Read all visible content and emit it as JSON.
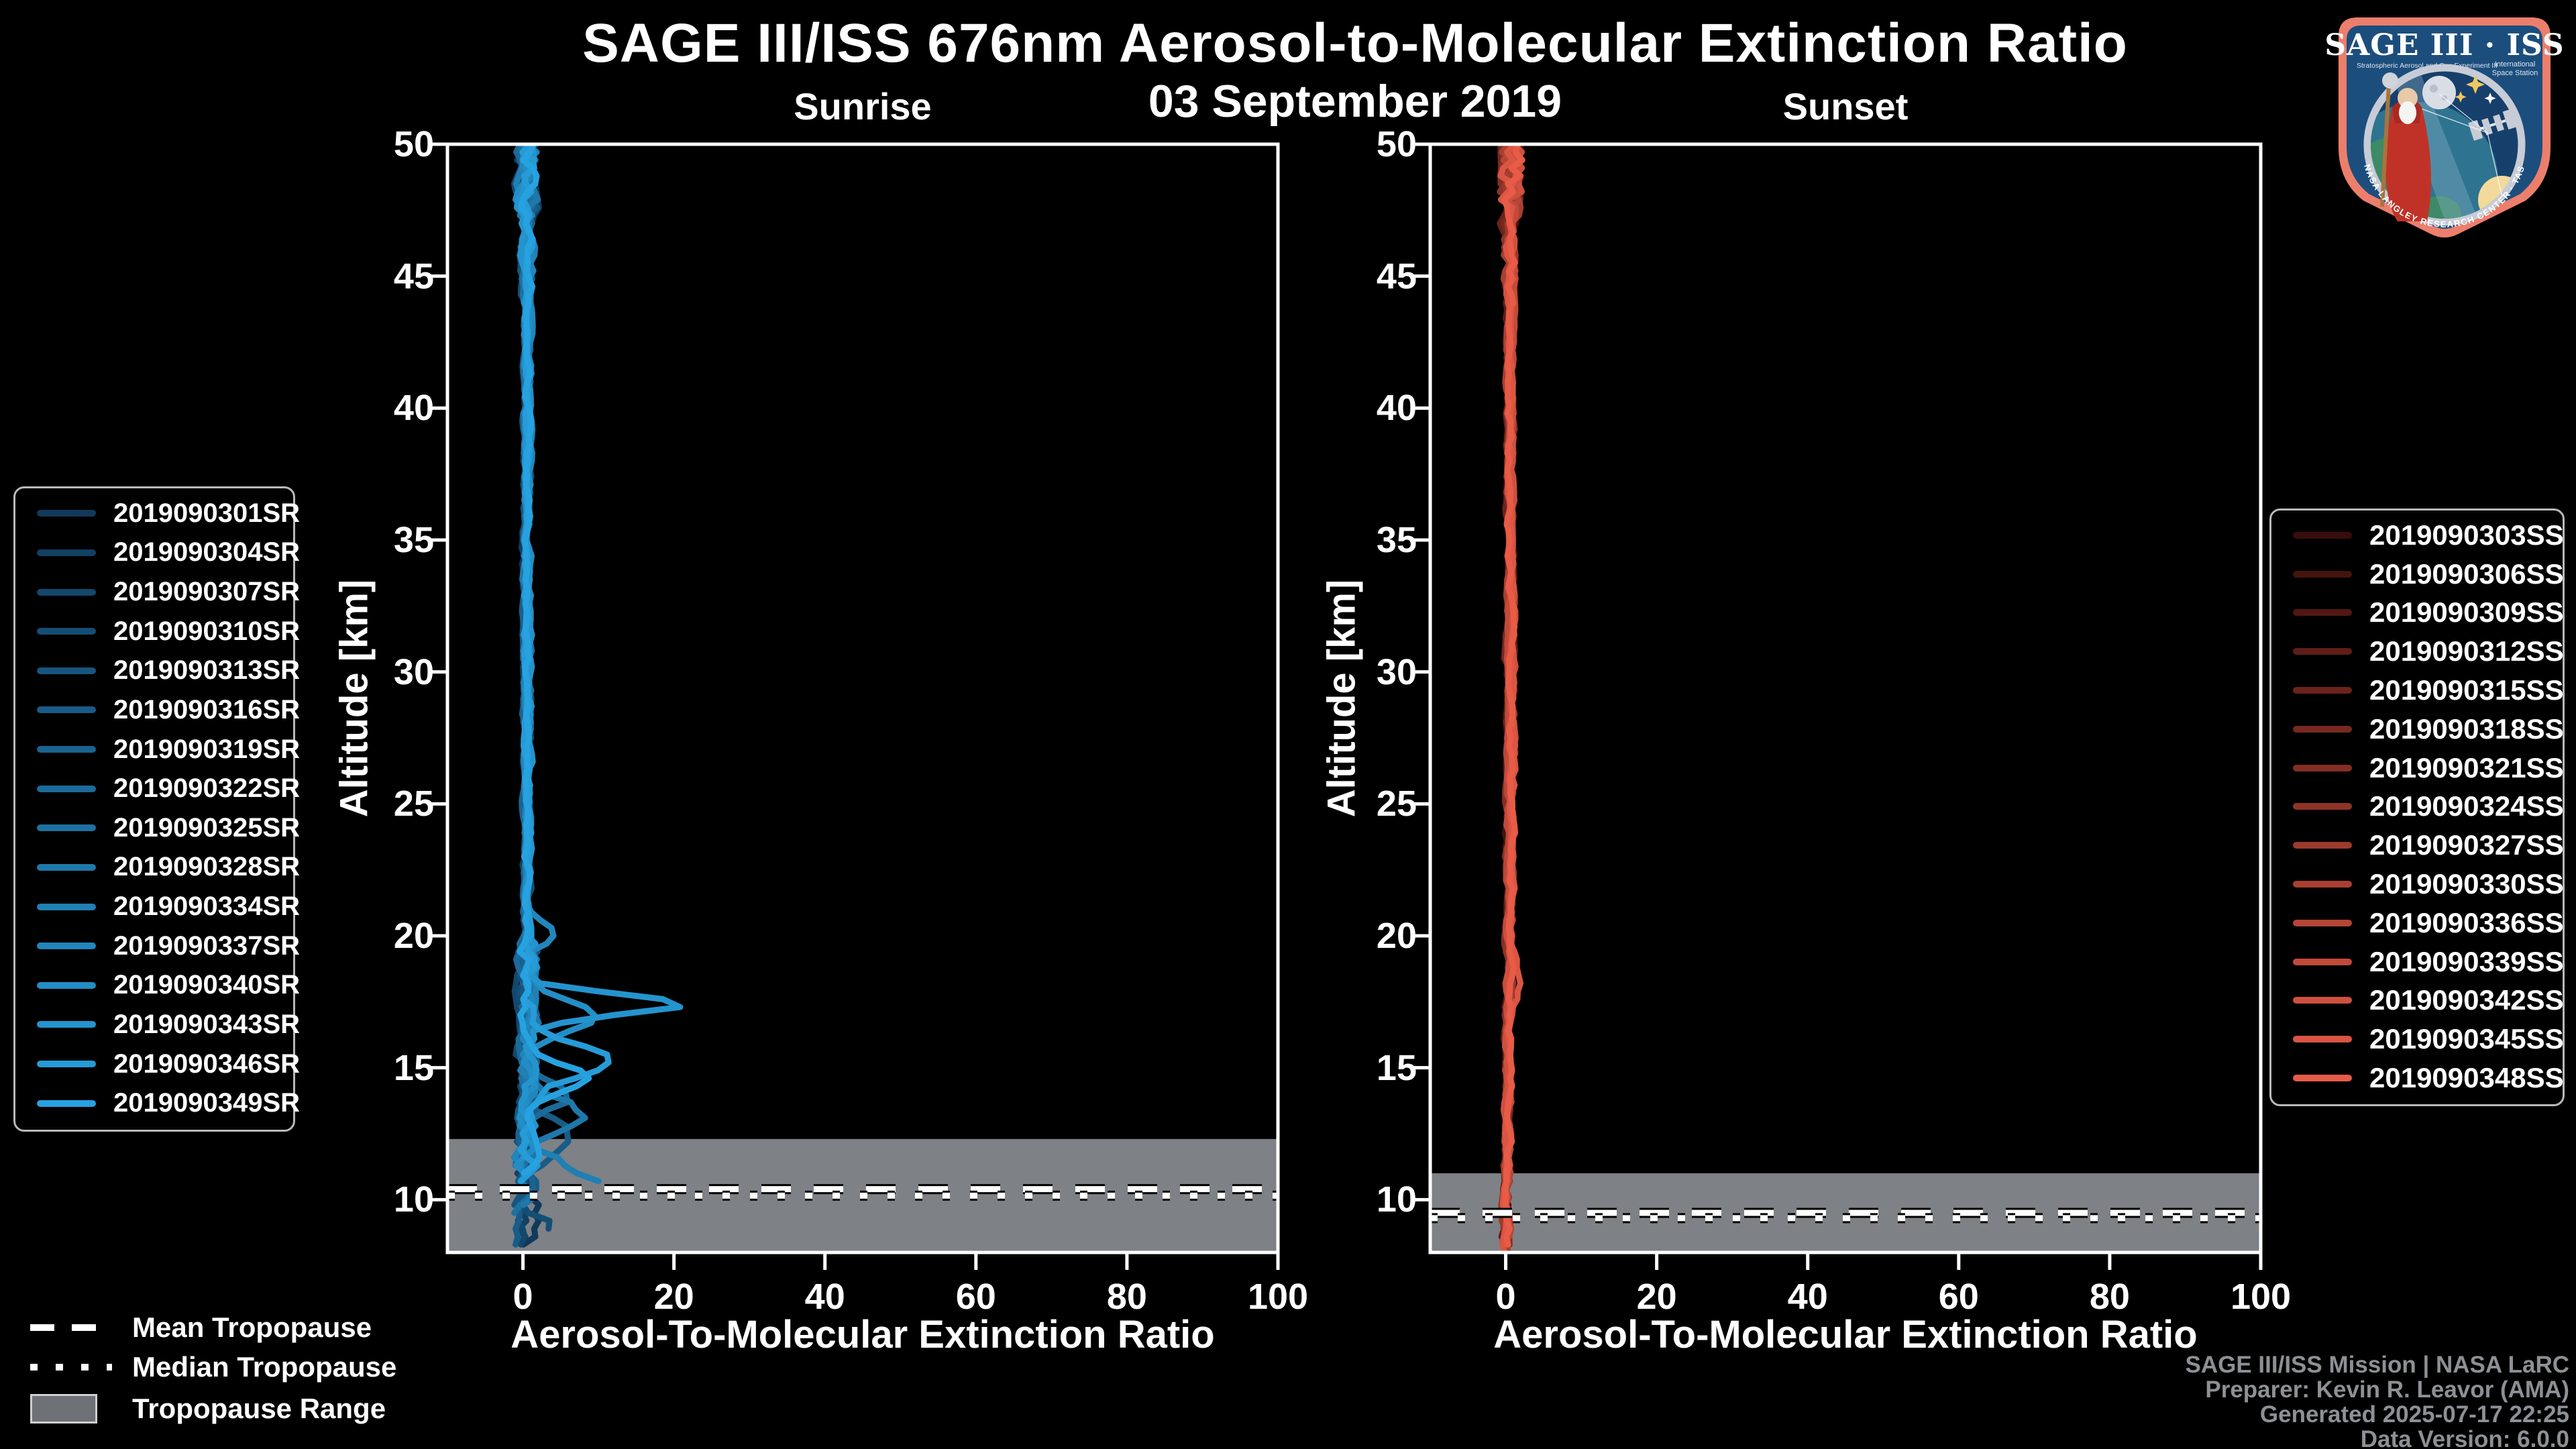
{
  "figure": {
    "title": "SAGE III/ISS 676nm Aerosol-to-Molecular Extinction Ratio",
    "subtitle": "03 September 2019",
    "background": "#000000"
  },
  "chart_data": [
    {
      "type": "line",
      "title": "Sunrise",
      "xlabel": "Aerosol-To-Molecular Extinction Ratio",
      "ylabel": "Altitude [km]",
      "xlim": [
        -10,
        100
      ],
      "ylim": [
        8,
        50
      ],
      "xticks": [
        0,
        20,
        40,
        60,
        80,
        100
      ],
      "yticks": [
        10,
        15,
        20,
        25,
        30,
        35,
        40,
        45,
        50
      ],
      "grid": false,
      "legend_position": "outside-left",
      "series": [
        "2019090301SR",
        "2019090304SR",
        "2019090307SR",
        "2019090310SR",
        "2019090313SR",
        "2019090316SR",
        "2019090319SR",
        "2019090322SR",
        "2019090325SR",
        "2019090328SR",
        "2019090334SR",
        "2019090337SR",
        "2019090340SR",
        "2019090343SR",
        "2019090346SR",
        "2019090349SR"
      ],
      "color_start": "#11395a",
      "color_end": "#27a2e0",
      "tropopause": {
        "mean_km": 10.4,
        "median_km": 10.15,
        "range_top_km": 12.3,
        "range_bottom_km": 8.0
      },
      "profile": {
        "description": "Profiles cluster near ratio 0-1 at all altitudes; enhanced noisy structure 8-20 km with aerosol peaks; largest peak ~22 at 17.4 km",
        "base": 0.55,
        "min": -1.2,
        "lean": 0.0,
        "amp_top": 0.95,
        "amp_mid": 0.33,
        "amp_low": 0.95,
        "low_alt": 20,
        "lowest_alt": 12,
        "amp_lowest": 1.25,
        "bottoms": [
          8.15,
          8.4,
          8.2,
          8.8,
          9.6,
          8.3,
          10.2,
          10.8,
          9.4,
          9.8,
          10.5,
          11.2,
          10.9,
          11.6,
          10.6,
          11.0
        ],
        "features": [
          {
            "series": 13,
            "alt_km": 17.4,
            "peak": 21.5,
            "width_km": 0.55
          },
          {
            "series": 12,
            "alt_km": 16.9,
            "peak": 8.5,
            "width_km": 0.8
          },
          {
            "series": 14,
            "alt_km": 15.3,
            "peak": 10.0,
            "width_km": 0.9
          },
          {
            "series": 15,
            "alt_km": 14.6,
            "peak": 8.0,
            "width_km": 0.8
          },
          {
            "series": 11,
            "alt_km": 20.1,
            "peak": 3.5,
            "width_km": 0.6
          },
          {
            "series": 9,
            "alt_km": 13.2,
            "peak": 7.0,
            "width_km": 0.9
          },
          {
            "series": 7,
            "alt_km": 14.0,
            "peak": 6.0,
            "width_km": 0.8
          },
          {
            "series": 5,
            "alt_km": 12.5,
            "peak": 5.0,
            "width_km": 0.8
          },
          {
            "series": 10,
            "alt_km": 10.6,
            "peak": 9.0,
            "width_km": 1.0
          },
          {
            "series": 3,
            "alt_km": 8.8,
            "peak": 4.0,
            "width_km": 0.6
          }
        ]
      }
    },
    {
      "type": "line",
      "title": "Sunset",
      "xlabel": "Aerosol-To-Molecular Extinction Ratio",
      "ylabel": "Altitude [km]",
      "xlim": [
        -10,
        100
      ],
      "ylim": [
        8,
        50
      ],
      "xticks": [
        0,
        20,
        40,
        60,
        80,
        100
      ],
      "yticks": [
        10,
        15,
        20,
        25,
        30,
        35,
        40,
        45,
        50
      ],
      "grid": false,
      "legend_position": "outside-right",
      "series": [
        "2019090303SS",
        "2019090306SS",
        "2019090309SS",
        "2019090312SS",
        "2019090315SS",
        "2019090318SS",
        "2019090321SS",
        "2019090324SS",
        "2019090327SS",
        "2019090330SS",
        "2019090336SS",
        "2019090339SS",
        "2019090342SS",
        "2019090345SS",
        "2019090348SS"
      ],
      "color_start": "#390d09",
      "color_end": "#e75b47",
      "tropopause": {
        "mean_km": 9.5,
        "median_km": 9.3,
        "range_top_km": 11.0,
        "range_bottom_km": 8.0
      },
      "profile": {
        "description": "Tight bundle near ratio 0-1 over full altitude range; wiggle amplitude grows above ~44 km",
        "base": 0.45,
        "min": -0.8,
        "lean": 0.55,
        "amp_top": 1.1,
        "amp_mid": 0.3,
        "amp_low": 0.3,
        "low_alt": 20,
        "lowest_alt": 12,
        "amp_lowest": 0.35,
        "bottoms": [
          8.0,
          8.2,
          8.1,
          8.4,
          8.0,
          8.3,
          8.1,
          8.5,
          8.2,
          8.0,
          8.4,
          8.1,
          8.3,
          8.0,
          8.2
        ],
        "features": [
          {
            "series": 13,
            "alt_km": 18.3,
            "peak": 1.2,
            "width_km": 0.9
          }
        ]
      }
    }
  ],
  "tropopause_legend": [
    {
      "label": "Mean Tropopause",
      "style": "dashed"
    },
    {
      "label": "Median Tropopause",
      "style": "dotted"
    },
    {
      "label": "Tropopause Range",
      "style": "band"
    }
  ],
  "attribution": {
    "lines": [
      "SAGE III/ISS Mission | NASA LaRC",
      "Preparer: Kevin R. Leavor (AMA)",
      "Generated 2025-07-17 22:25",
      "Data Version: 6.0.0"
    ]
  },
  "logo": {
    "title": "SAGE III · ISS",
    "subtitle_left": "Stratospheric Aerosol and Gas Experiment III",
    "subtitle_right_1": "International",
    "subtitle_right_2": "Space Station",
    "ring_text": "BALL · NASA LANGLEY RESEARCH CENTER · TAS-I · ESA"
  },
  "colors": {
    "band": "#7e8186",
    "spine": "#ffffff",
    "tick_label": "#ffffff",
    "attribution": "#8d9094",
    "legend_border": "#b9b9b9",
    "logo_border": "#ec7e6c",
    "logo_field": "#1c4e7d"
  }
}
